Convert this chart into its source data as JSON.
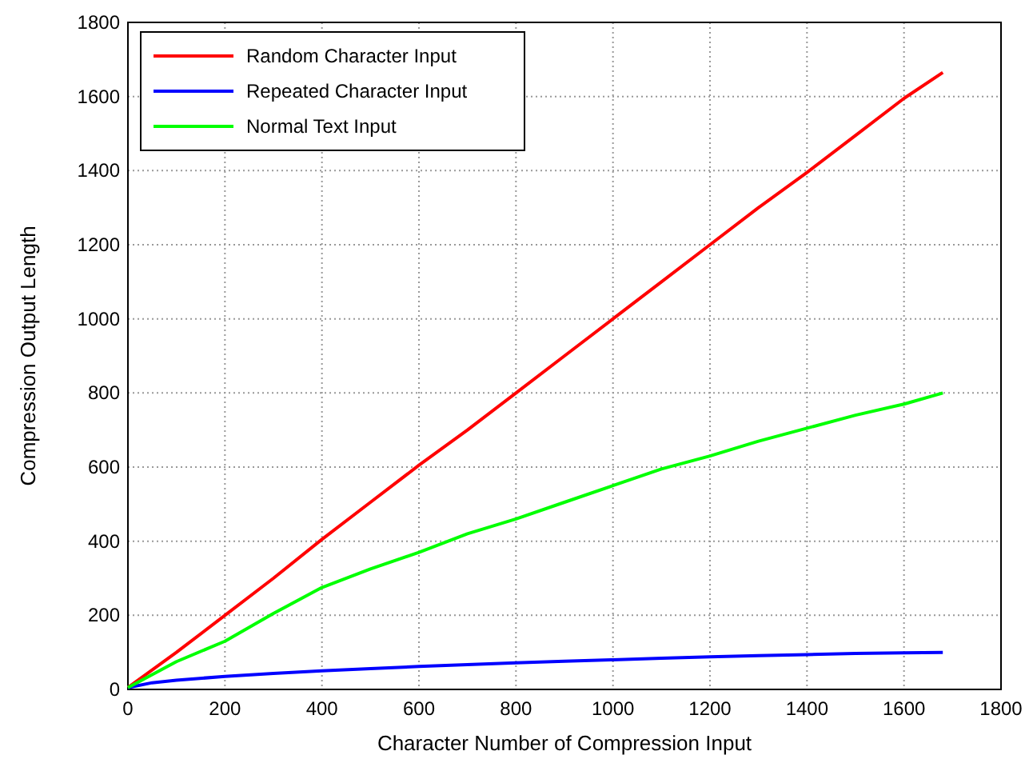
{
  "chart_data": {
    "type": "line",
    "xlabel": "Character Number of Compression Input",
    "ylabel": "Compression Output Length",
    "xlim": [
      0,
      1800
    ],
    "xticks": [
      0,
      200,
      400,
      600,
      800,
      1000,
      1200,
      1400,
      1600,
      1800
    ],
    "ylim": [
      0,
      1800
    ],
    "yticks": [
      0,
      200,
      400,
      600,
      800,
      1000,
      1200,
      1400,
      1600,
      1800
    ],
    "grid": true,
    "legend": "top left",
    "line_style": "solid",
    "series": [
      {
        "name": "Random Character Input",
        "color": "#ff0000",
        "x": [
          0,
          100,
          200,
          300,
          400,
          500,
          600,
          700,
          800,
          900,
          1000,
          1100,
          1200,
          1300,
          1400,
          1500,
          1600,
          1680
        ],
        "values": [
          5,
          100,
          200,
          300,
          405,
          505,
          605,
          700,
          800,
          900,
          1000,
          1100,
          1200,
          1300,
          1395,
          1495,
          1595,
          1665
        ]
      },
      {
        "name": "Repeated Character Input",
        "color": "#0000ff",
        "x": [
          0,
          50,
          100,
          200,
          300,
          400,
          500,
          600,
          700,
          800,
          900,
          1000,
          1100,
          1200,
          1300,
          1400,
          1500,
          1600,
          1680
        ],
        "values": [
          5,
          18,
          25,
          35,
          43,
          50,
          56,
          62,
          67,
          72,
          76,
          80,
          84,
          88,
          91,
          94,
          97,
          99,
          100
        ]
      },
      {
        "name": "Normal Text Input",
        "color": "#00ff00",
        "x": [
          0,
          100,
          200,
          300,
          400,
          500,
          600,
          700,
          800,
          900,
          1000,
          1100,
          1200,
          1300,
          1400,
          1500,
          1600,
          1680
        ],
        "values": [
          5,
          75,
          130,
          205,
          275,
          325,
          370,
          420,
          460,
          505,
          550,
          595,
          630,
          670,
          705,
          740,
          770,
          800
        ]
      }
    ]
  }
}
